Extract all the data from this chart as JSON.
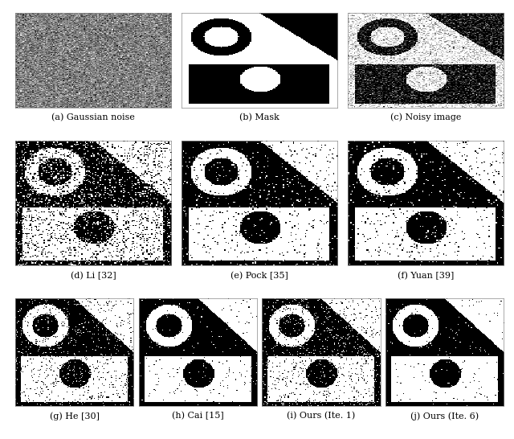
{
  "background_color": "#ffffff",
  "captions": [
    "(a) Gaussian noise",
    "(b) Mask",
    "(c) Noisy image",
    "(d) Li [32]",
    "(e) Pock [35]",
    "(f) Yuan [39]",
    "(g) He [30]",
    "(h) Cai [15]",
    "(i) Ours (Ite. 1)",
    "(j) Ours (Ite. 6)"
  ],
  "caption_fontsize": 8.0,
  "image_size": 128
}
